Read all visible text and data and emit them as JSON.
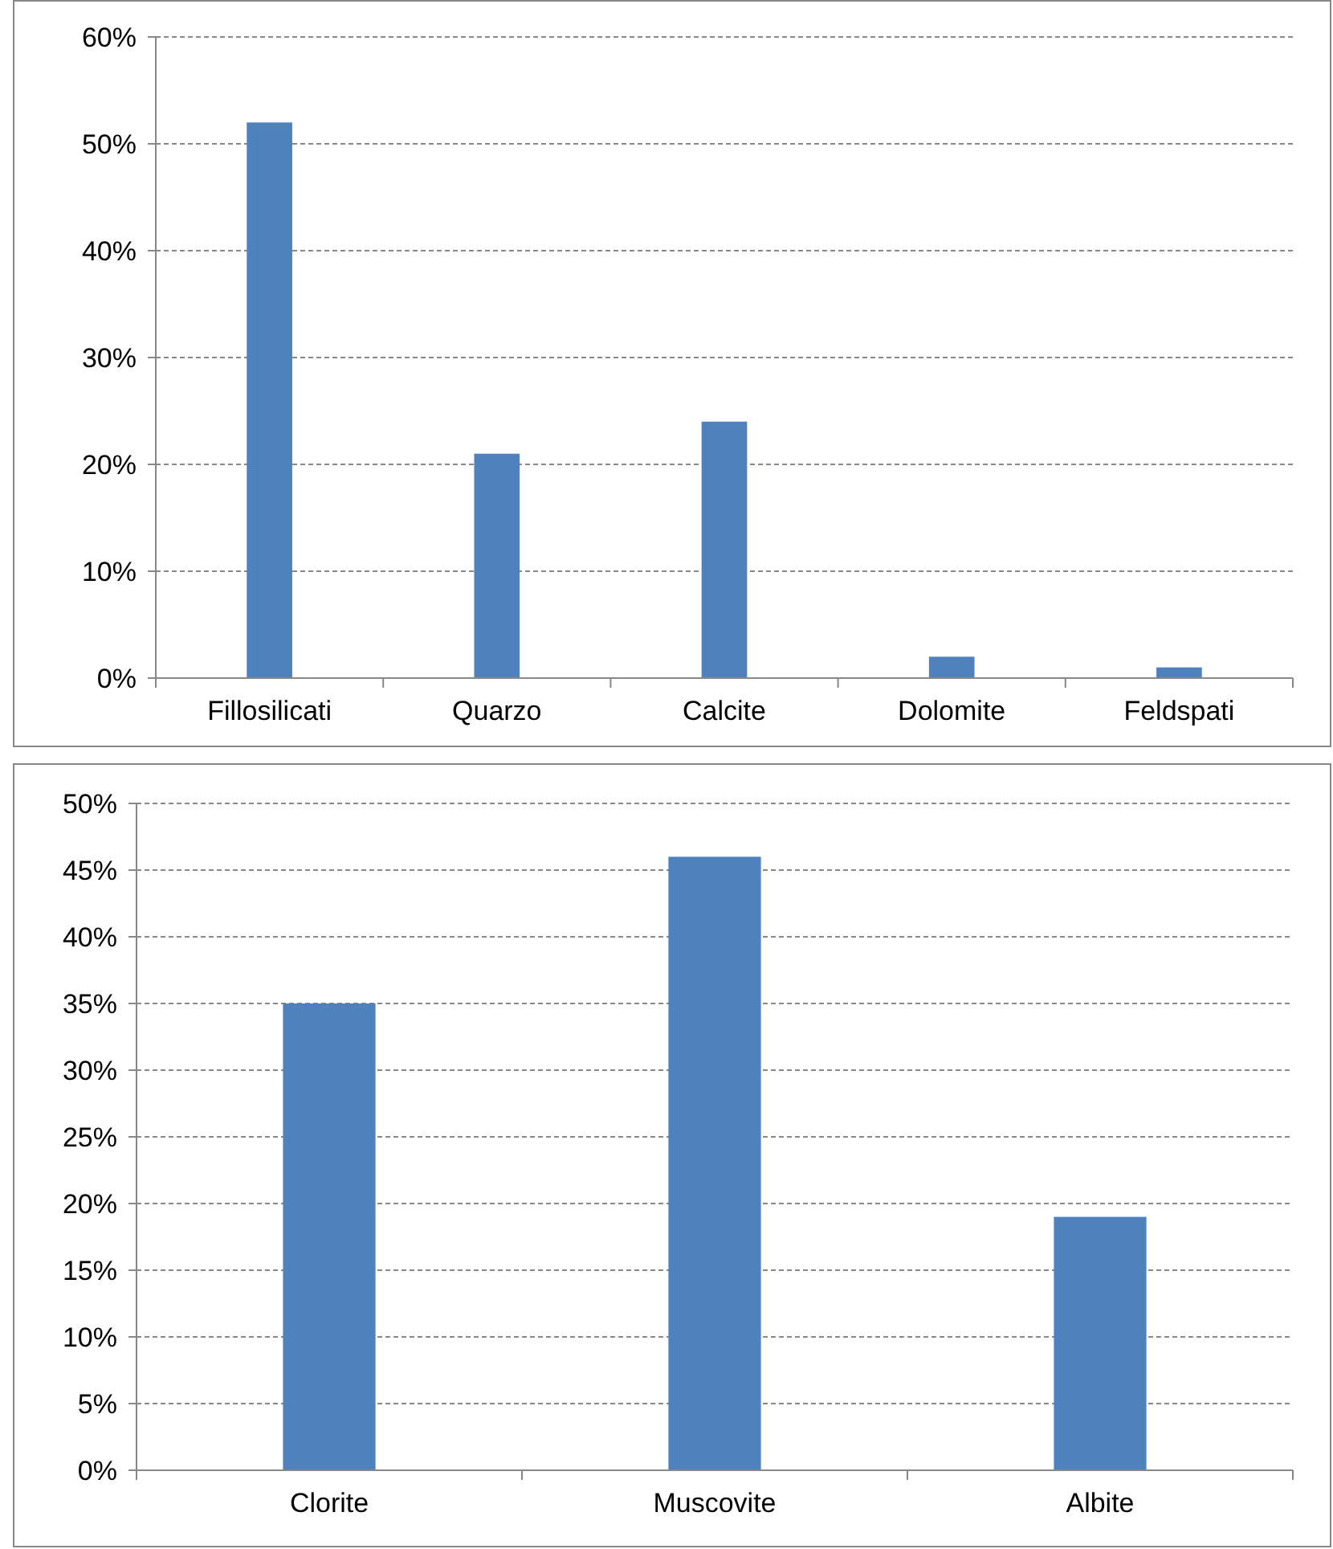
{
  "chart_data": [
    {
      "type": "bar",
      "categories": [
        "Fillosilicati",
        "Quarzo",
        "Calcite",
        "Dolomite",
        "Feldspati"
      ],
      "values": [
        52,
        21,
        24,
        2,
        1
      ],
      "color": "#4f81bd",
      "ylim": [
        0,
        60
      ],
      "yticks": [
        {
          "value": 0,
          "label": "0%"
        },
        {
          "value": 10,
          "label": "10%"
        },
        {
          "value": 20,
          "label": "20%"
        },
        {
          "value": 30,
          "label": "30%"
        },
        {
          "value": 40,
          "label": "40%"
        },
        {
          "value": 50,
          "label": "50%"
        },
        {
          "value": 60,
          "label": "60%"
        }
      ],
      "grid": "y"
    },
    {
      "type": "bar",
      "categories": [
        "Clorite",
        "Muscovite",
        "Albite"
      ],
      "values": [
        35,
        46,
        19
      ],
      "color": "#4f81bd",
      "ylim": [
        0,
        50
      ],
      "yticks": [
        {
          "value": 0,
          "label": "0%"
        },
        {
          "value": 5,
          "label": "5%"
        },
        {
          "value": 10,
          "label": "10%"
        },
        {
          "value": 15,
          "label": "15%"
        },
        {
          "value": 20,
          "label": "20%"
        },
        {
          "value": 25,
          "label": "25%"
        },
        {
          "value": 30,
          "label": "30%"
        },
        {
          "value": 35,
          "label": "35%"
        },
        {
          "value": 40,
          "label": "40%"
        },
        {
          "value": 45,
          "label": "45%"
        },
        {
          "value": 50,
          "label": "50%"
        }
      ],
      "grid": "y"
    }
  ]
}
